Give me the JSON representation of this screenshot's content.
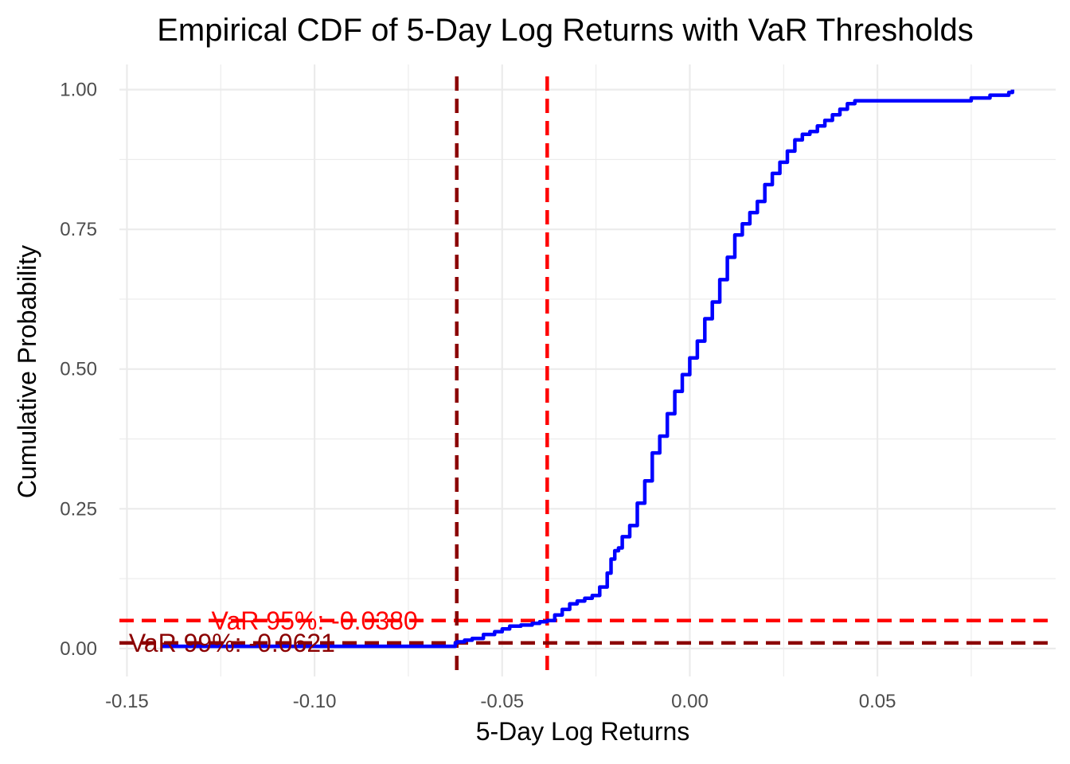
{
  "chart_data": {
    "type": "line",
    "title": "Empirical CDF of 5-Day Log Returns with VaR Thresholds",
    "xlabel": "5-Day Log Returns",
    "ylabel": "Cumulative Probability",
    "xlim": [
      -0.152,
      0.0975
    ],
    "ylim": [
      -0.05,
      1.045
    ],
    "grid": true,
    "x_ticks": [
      -0.15,
      -0.1,
      -0.05,
      0.0,
      0.05
    ],
    "x_tick_labels": [
      "-0.15",
      "-0.10",
      "-0.05",
      "0.00",
      "0.05"
    ],
    "y_ticks": [
      0.0,
      0.25,
      0.5,
      0.75,
      1.0
    ],
    "y_tick_labels": [
      "0.00",
      "0.25",
      "0.50",
      "0.75",
      "1.00"
    ],
    "series": [
      {
        "color": "#0000ff",
        "x": [
          -0.141,
          -0.0625,
          -0.062,
          -0.06,
          -0.058,
          -0.055,
          -0.052,
          -0.05,
          -0.048,
          -0.045,
          -0.042,
          -0.04,
          -0.038,
          -0.036,
          -0.034,
          -0.032,
          -0.03,
          -0.028,
          -0.026,
          -0.024,
          -0.022,
          -0.021,
          -0.02,
          -0.019,
          -0.018,
          -0.016,
          -0.014,
          -0.012,
          -0.01,
          -0.008,
          -0.006,
          -0.004,
          -0.002,
          0.0,
          0.002,
          0.004,
          0.006,
          0.008,
          0.01,
          0.012,
          0.014,
          0.016,
          0.018,
          0.02,
          0.022,
          0.024,
          0.026,
          0.028,
          0.03,
          0.032,
          0.034,
          0.036,
          0.038,
          0.04,
          0.042,
          0.044,
          0.046,
          0.048,
          0.05,
          0.06,
          0.07,
          0.075,
          0.08,
          0.085,
          0.086
        ],
        "y": [
          0.004,
          0.01,
          0.012,
          0.015,
          0.018,
          0.025,
          0.03,
          0.035,
          0.04,
          0.042,
          0.045,
          0.048,
          0.05,
          0.06,
          0.07,
          0.08,
          0.085,
          0.09,
          0.095,
          0.11,
          0.135,
          0.16,
          0.175,
          0.18,
          0.2,
          0.22,
          0.26,
          0.3,
          0.35,
          0.38,
          0.42,
          0.46,
          0.49,
          0.52,
          0.55,
          0.59,
          0.62,
          0.66,
          0.7,
          0.74,
          0.76,
          0.78,
          0.8,
          0.83,
          0.85,
          0.87,
          0.89,
          0.91,
          0.92,
          0.925,
          0.935,
          0.945,
          0.955,
          0.965,
          0.975,
          0.98,
          0.98,
          0.98,
          0.98,
          0.98,
          0.98,
          0.985,
          0.99,
          0.995,
          1.0
        ]
      }
    ],
    "thresholds": [
      {
        "label": "VaR 95%: -0.0380",
        "x": -0.038,
        "y": 0.05,
        "color": "#ff0000",
        "label_x": -0.1,
        "label_y": 0.05
      },
      {
        "label": "VaR 99%: -0.0621",
        "x": -0.0621,
        "y": 0.01,
        "color": "#8b0000",
        "label_x": -0.122,
        "label_y": 0.01
      }
    ],
    "colors": {
      "grid": "#ebebeb",
      "tick_label": "#4d4d4d",
      "text": "#000000"
    }
  }
}
